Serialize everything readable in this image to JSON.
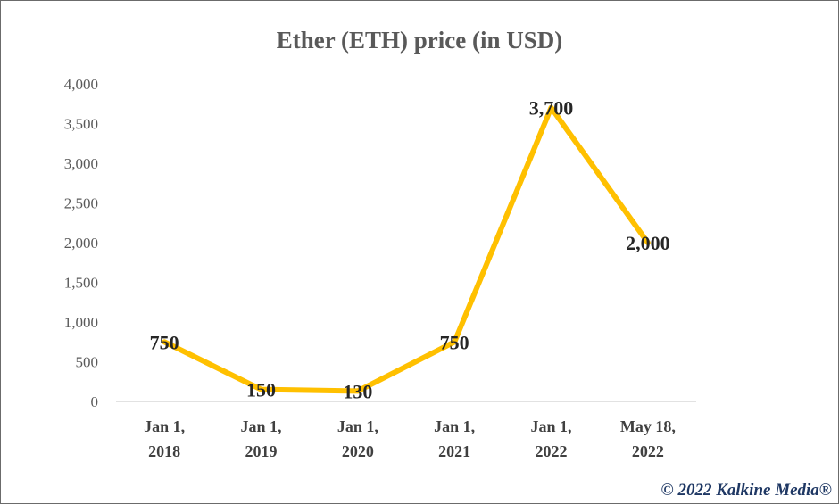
{
  "chart_data": {
    "type": "line",
    "title": "Ether (ETH) price (in USD)",
    "xlabel": "",
    "ylabel": "",
    "categories": [
      [
        "Jan 1,",
        "2018"
      ],
      [
        "Jan 1,",
        "2019"
      ],
      [
        "Jan 1,",
        "2020"
      ],
      [
        "Jan 1,",
        "2021"
      ],
      [
        "Jan 1,",
        "2022"
      ],
      [
        "May 18,",
        "2022"
      ]
    ],
    "values": [
      750,
      150,
      130,
      750,
      3700,
      2000
    ],
    "data_labels": [
      "750",
      "150",
      "130",
      "750",
      "3,700",
      "2,000"
    ],
    "ylim": [
      0,
      4000
    ],
    "yticks": [
      0,
      500,
      1000,
      1500,
      2000,
      2500,
      3000,
      3500,
      4000
    ],
    "ytick_labels": [
      "0",
      "500",
      "1,000",
      "1,500",
      "2,000",
      "2,500",
      "3,000",
      "3,500",
      "4,000"
    ],
    "grid": false,
    "legend": "none",
    "colors": {
      "line": "#ffc000",
      "axis": "#d9d9d9",
      "text": "#595959"
    }
  },
  "copyright": "© 2022 Kalkine Media®"
}
